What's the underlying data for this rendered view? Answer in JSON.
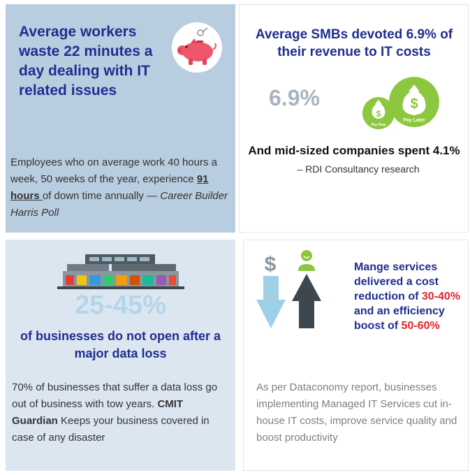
{
  "panel_waste": {
    "heading": "Average workers waste 22 minutes a day dealing with IT related issues",
    "body_before": "Employees who on average work 40 hours a week, 50 weeks of the year, experience ",
    "body_highlight": "91 hours ",
    "body_after": "of down time annually  —  ",
    "source": "Career Builder Harris Poll",
    "icon": "piggy-bank-icon",
    "icon_color": "#f0566b"
  },
  "panel_revenue": {
    "heading": "Average SMBs devoted 6.9% of their revenue to IT costs",
    "stat": "6.9%",
    "bag_small_label": "Pay Now",
    "bag_large_label": "Pay Later",
    "bag_symbol": "$",
    "bag_color": "#8dc63f",
    "subheading": "And mid-sized companies spent 4.1%",
    "credit": "– RDI Consultancy research"
  },
  "panel_dataloss": {
    "stat": "25-45%",
    "caption": "of businesses do not open after a major data loss",
    "body_before": "70% of businesses that suffer a data loss go out of business with tow years. ",
    "body_bold": "CMIT Guardian",
    "body_after": " Keeps your business covered in case of any disaster",
    "icon": "storefront-row-icon"
  },
  "panel_managed": {
    "heading_part1": "Mange services delivered a cost reduction of ",
    "heading_red1": "30-40%",
    "heading_part2": " and an efficiency  boost of ",
    "heading_red2": "50-60%",
    "dollar_symbol": "$",
    "body": "As per Dataconomy report, businesses implementing Managed IT Services cut in-house IT costs, improve service quality and boost productivity",
    "accent_red": "#e0262c",
    "arrow_down_color": "#9fd0e8",
    "arrow_up_color": "#3d4750"
  }
}
